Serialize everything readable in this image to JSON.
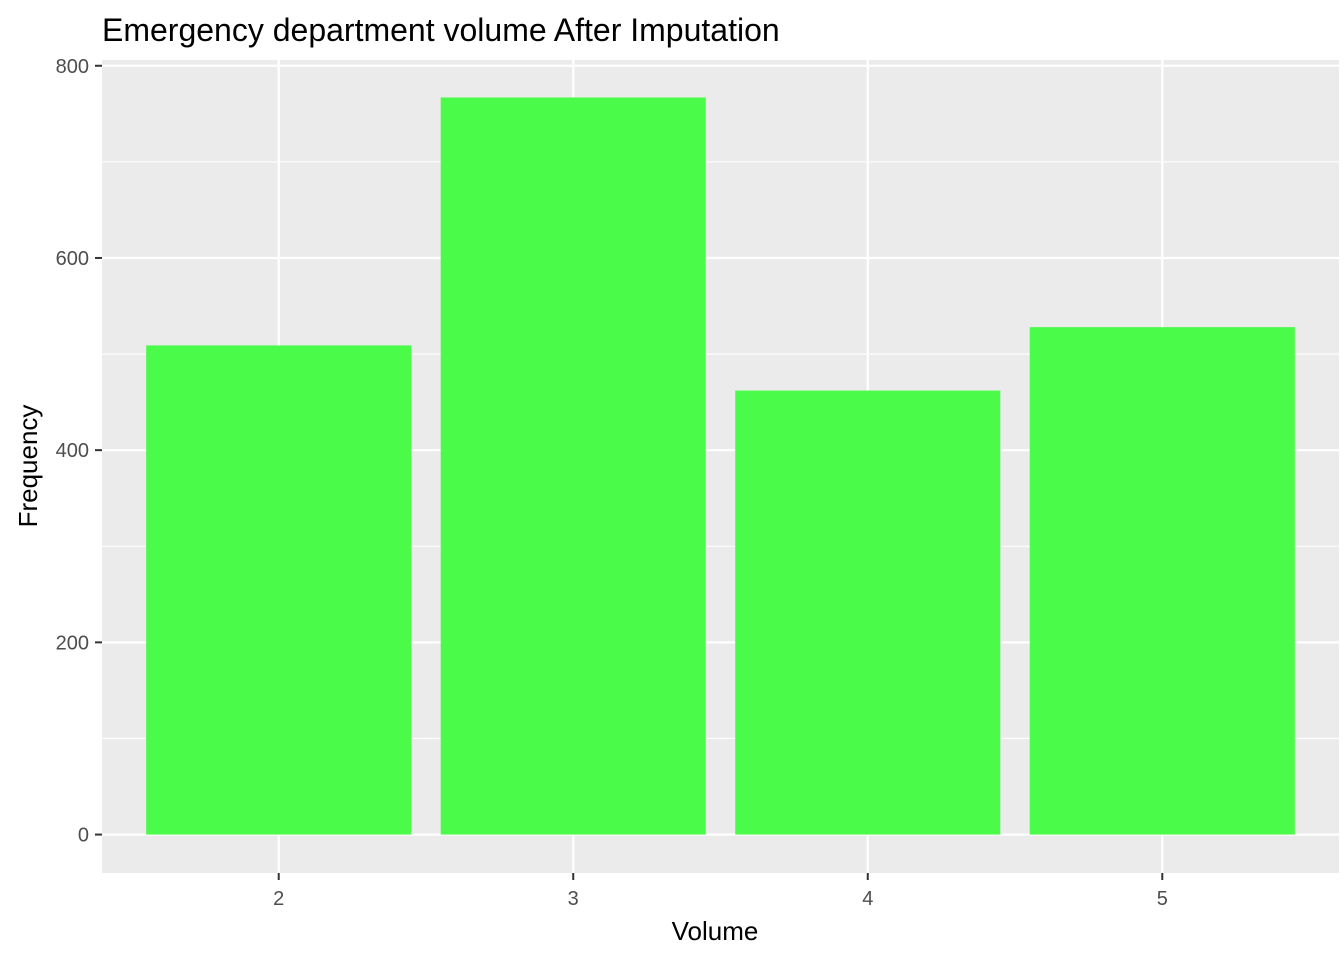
{
  "chart_data": {
    "type": "bar",
    "title": "Emergency department volume After Imputation",
    "xlabel": "Volume",
    "ylabel": "Frequency",
    "categories": [
      "2",
      "3",
      "4",
      "5"
    ],
    "values": [
      509,
      767,
      462,
      528
    ],
    "ylim": [
      -40,
      806
    ],
    "yticks": [
      "0",
      "200",
      "400",
      "600",
      "800"
    ],
    "grid": true,
    "legend": "none",
    "colors": {
      "bar": "#4afb4a",
      "panel": "#ebebeb",
      "grid_major": "#ffffff",
      "tick_label": "#4d4d4d",
      "tick_mark": "#333333"
    }
  }
}
